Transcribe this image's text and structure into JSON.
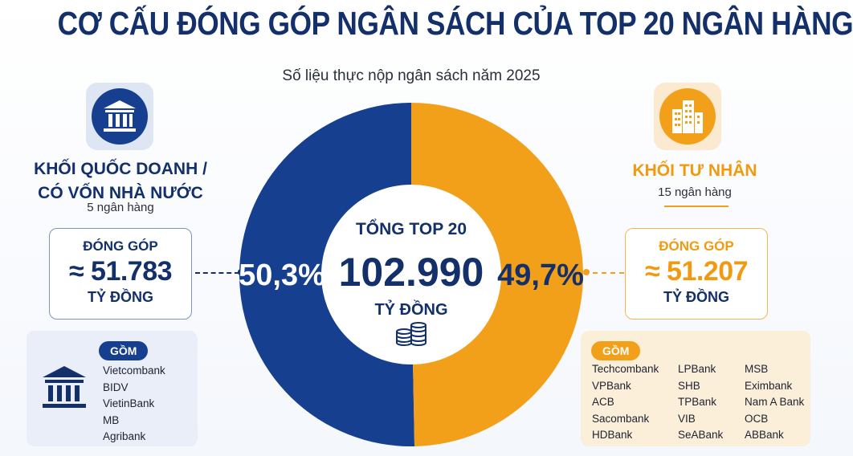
{
  "title": "CƠ CẤU ĐÓNG GÓP NGÂN SÁCH CỦA TOP 20 NGÂN HÀNG",
  "subtitle": "Số liệu thực nộp ngân sách năm 2025",
  "colors": {
    "state": "#173f8f",
    "private": "#f2a019",
    "navy": "#13306b"
  },
  "state_group": {
    "icon": "bank-building-icon",
    "name_line1": "KHỐI QUỐC DOANH /",
    "name_line2": "CÓ VỐN NHÀ NƯỚC",
    "count": "5 ngân hàng",
    "contribution_label": "ĐÓNG GÓP",
    "contribution_value": "≈ 51.783",
    "contribution_unit": "TỶ ĐỒNG",
    "members_label": "GỒM",
    "members": [
      "Vietcombank",
      "BIDV",
      "VietinBank",
      "MB",
      "Agribank"
    ]
  },
  "private_group": {
    "icon": "office-buildings-icon",
    "name": "KHỐI TƯ NHÂN",
    "count": "15 ngân hàng",
    "contribution_label": "ĐÓNG GÓP",
    "contribution_value": "≈ 51.207",
    "contribution_unit": "TỶ ĐỒNG",
    "members_label": "GỒM",
    "members": [
      "Techcombank",
      "LPBank",
      "MSB",
      "VPBank",
      "SHB",
      "Eximbank",
      "ACB",
      "TPBank",
      "Nam A Bank",
      "Sacombank",
      "VIB",
      "OCB",
      "HDBank",
      "SeABank",
      "ABBank"
    ]
  },
  "chart_data": {
    "type": "pie",
    "donut": true,
    "center_label": "TỔNG TOP 20",
    "center_value": "102.990",
    "center_unit": "TỶ ĐỒNG",
    "center_icon": "coin-stack-icon",
    "slices": [
      {
        "value": 50.3,
        "label": "50,3%",
        "value_bil": 51783,
        "color": "#173f8f"
      },
      {
        "value": 49.7,
        "label": "49,7%",
        "value_bil": 51207,
        "color": "#f2a019"
      }
    ]
  }
}
